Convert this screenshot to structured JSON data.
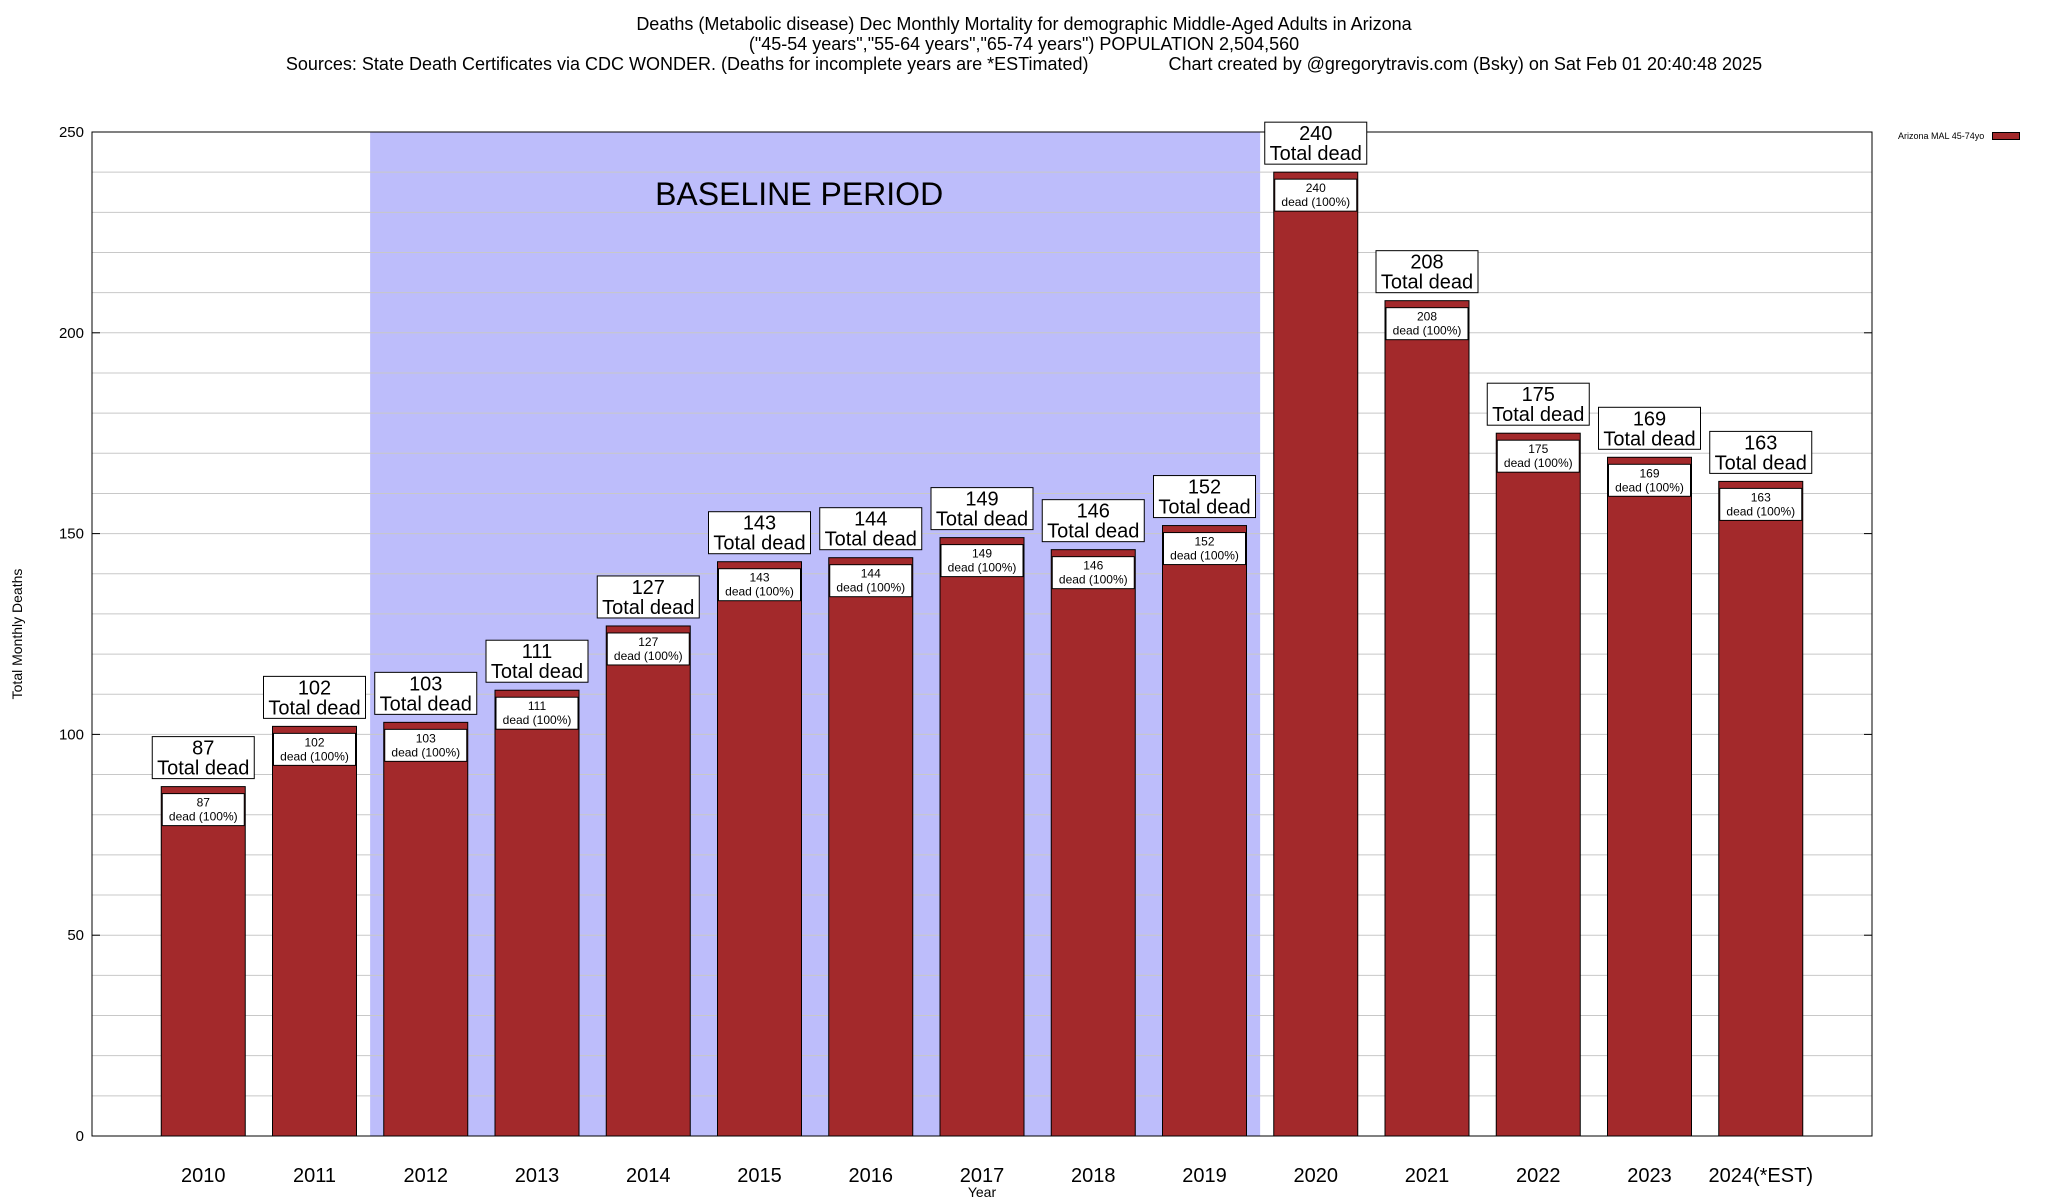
{
  "chart_data": {
    "type": "bar",
    "title_lines": [
      "Deaths (Metabolic disease) Dec Monthly Mortality for demographic Middle-Aged Adults in Arizona",
      "(\"45-54 years\",\"55-64 years\",\"65-74 years\") POPULATION 2,504,560",
      "Sources: State Death Certificates via CDC WONDER. (Deaths for incomplete years are *ESTimated)                Chart created by @gregorytravis.com (Bsky) on Sat Feb 01 20:40:48 2025"
    ],
    "xlabel": "Year",
    "ylabel": "Total Monthly Deaths",
    "ylim": [
      0,
      250
    ],
    "yticks": [
      0,
      50,
      100,
      150,
      200,
      250
    ],
    "grid": true,
    "categories": [
      "2010",
      "2011",
      "2012",
      "2013",
      "2014",
      "2015",
      "2016",
      "2017",
      "2018",
      "2019",
      "2020",
      "2021",
      "2022",
      "2023",
      "2024(*EST)"
    ],
    "series": [
      {
        "name": "Arizona MAL 45-74yo",
        "values": [
          87,
          102,
          103,
          111,
          127,
          143,
          144,
          149,
          146,
          152,
          240,
          208,
          175,
          169,
          163
        ]
      }
    ],
    "bar_color": "#a3292b",
    "baseline_period": {
      "label": "BASELINE PERIOD",
      "from": "2012",
      "to": "2019",
      "color": "#bdbdfb"
    },
    "total_label_suffix": "Total dead",
    "inner_label_suffix": "dead (100%)",
    "legend_position": "top-right"
  }
}
